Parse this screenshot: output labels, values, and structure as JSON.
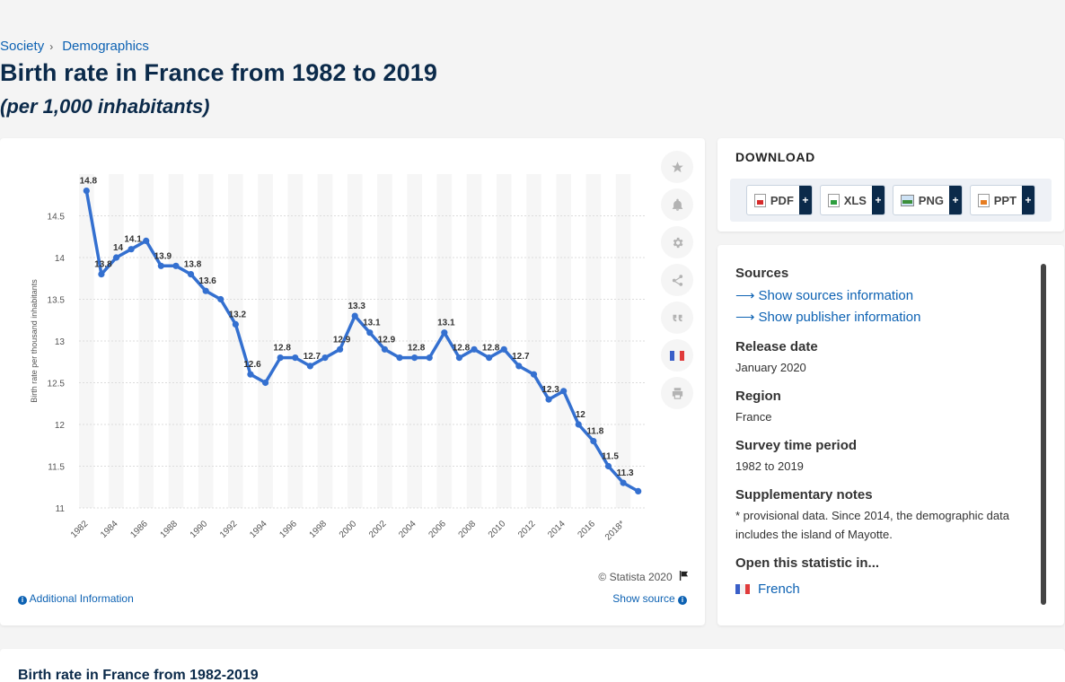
{
  "breadcrumb": {
    "items": [
      "Society",
      "Demographics"
    ],
    "separator": "›"
  },
  "header": {
    "title": "Birth rate in France from 1982 to 2019",
    "subtitle": "(per 1,000 inhabitants)"
  },
  "chart_card": {
    "copyright": "© Statista 2020",
    "additional_info": "Additional Information",
    "show_source": "Show source",
    "tools": [
      "star-icon",
      "bell-icon",
      "gear-icon",
      "share-icon",
      "quote-icon",
      "france-flag-icon",
      "print-icon"
    ]
  },
  "chart_data": {
    "type": "line",
    "title": "",
    "xlabel": "",
    "ylabel": "Birth rate per thousand inhabitants",
    "ylim": [
      11,
      15
    ],
    "yticks": [
      11,
      11.5,
      12,
      12.5,
      13,
      13.5,
      14,
      14.5
    ],
    "x": [
      "1982",
      "1983",
      "1984",
      "1985",
      "1986",
      "1987",
      "1988",
      "1989",
      "1990",
      "1991",
      "1992",
      "1993",
      "1994",
      "1995",
      "1996",
      "1997",
      "1998",
      "1999",
      "2000",
      "2001",
      "2002",
      "2003",
      "2004",
      "2005",
      "2006",
      "2007",
      "2008",
      "2009",
      "2010",
      "2011",
      "2012",
      "2013",
      "2014",
      "2015",
      "2016",
      "2017",
      "2018*",
      "2019*"
    ],
    "xtick_labels": [
      "1982",
      "1984",
      "1986",
      "1988",
      "1990",
      "1992",
      "1994",
      "1996",
      "1998",
      "2000",
      "2002",
      "2004",
      "2006",
      "2008",
      "2010",
      "2012",
      "2014",
      "2016",
      "2018*"
    ],
    "series": [
      {
        "values": [
          14.8,
          13.8,
          14.0,
          14.1,
          14.2,
          13.9,
          13.9,
          13.8,
          13.6,
          13.5,
          13.2,
          12.6,
          12.5,
          12.8,
          12.8,
          12.7,
          12.8,
          12.9,
          13.3,
          13.1,
          12.9,
          12.8,
          12.8,
          12.8,
          13.1,
          12.8,
          12.9,
          12.8,
          12.9,
          12.7,
          12.6,
          12.3,
          12.4,
          12.0,
          11.8,
          11.5,
          11.3,
          11.2
        ],
        "color": "#3470d0"
      }
    ],
    "data_labels": [
      {
        "i": 0,
        "text": "14.8"
      },
      {
        "i": 1,
        "text": "13.8"
      },
      {
        "i": 2,
        "text": "14"
      },
      {
        "i": 3,
        "text": "14.1"
      },
      {
        "i": 5,
        "text": "13.9"
      },
      {
        "i": 7,
        "text": "13.8"
      },
      {
        "i": 8,
        "text": "13.6"
      },
      {
        "i": 10,
        "text": "13.2"
      },
      {
        "i": 11,
        "text": "12.6"
      },
      {
        "i": 13,
        "text": "12.8"
      },
      {
        "i": 15,
        "text": "12.7"
      },
      {
        "i": 17,
        "text": "12.9"
      },
      {
        "i": 18,
        "text": "13.3"
      },
      {
        "i": 19,
        "text": "13.1"
      },
      {
        "i": 20,
        "text": "12.9"
      },
      {
        "i": 22,
        "text": "12.8"
      },
      {
        "i": 24,
        "text": "13.1"
      },
      {
        "i": 25,
        "text": "12.8"
      },
      {
        "i": 27,
        "text": "12.8"
      },
      {
        "i": 29,
        "text": "12.7"
      },
      {
        "i": 31,
        "text": "12.3"
      },
      {
        "i": 33,
        "text": "12"
      },
      {
        "i": 34,
        "text": "11.8"
      },
      {
        "i": 35,
        "text": "11.5"
      },
      {
        "i": 36,
        "text": "11.3"
      }
    ],
    "grid": true,
    "legend": "none"
  },
  "download": {
    "title": "DOWNLOAD",
    "formats": [
      {
        "label": "PDF",
        "icon": "pdf-icon"
      },
      {
        "label": "XLS",
        "icon": "xls-icon"
      },
      {
        "label": "PNG",
        "icon": "png-icon"
      },
      {
        "label": "PPT",
        "icon": "ppt-icon"
      }
    ],
    "plus": "+"
  },
  "sources": {
    "heading": "Sources",
    "show_sources": "Show sources information",
    "show_publisher": "Show publisher information",
    "release_heading": "Release date",
    "release_value": "January 2020",
    "region_heading": "Region",
    "region_value": "France",
    "period_heading": "Survey time period",
    "period_value": "1982 to 2019",
    "notes_heading": "Supplementary notes",
    "notes_value": "* provisional data. Since 2014, the demographic data includes the island of Mayotte.",
    "open_heading": "Open this statistic in...",
    "open_value": "French"
  },
  "bottom": {
    "title": "Birth rate in France from 1982-2019"
  }
}
